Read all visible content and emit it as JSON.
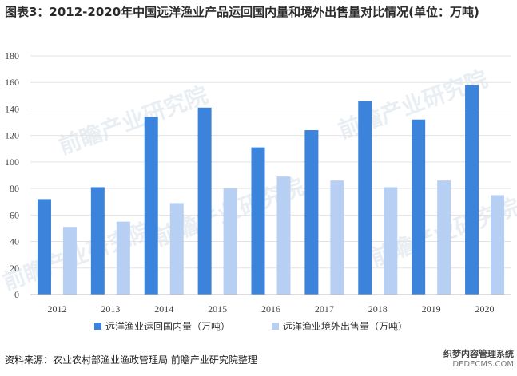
{
  "title": "图表3：2012-2020年中国远洋渔业产品运回国内量和境外出售量对比情况(单位：万吨)",
  "source": "资料来源：农业农村部渔业渔政管理局 前瞻产业研究院整理",
  "watermark": "前瞻产业研究院",
  "corner_watermark": {
    "line1": "织梦内容管理系统",
    "line2": "DEDECMS.COM"
  },
  "colors": {
    "series1": "#3b83db",
    "series2": "#b7cff3",
    "grid": "#e3e3e3",
    "axis": "#bbbbbb"
  },
  "chart_data": {
    "type": "bar",
    "categories": [
      "2012",
      "2013",
      "2014",
      "2015",
      "2016",
      "2017",
      "2018",
      "2019",
      "2020"
    ],
    "series": [
      {
        "name": "远洋渔业运回国内量（万吨）",
        "values": [
          72,
          81,
          134,
          141,
          111,
          124,
          146,
          132,
          158
        ]
      },
      {
        "name": "远洋渔业境外出售量（万吨）",
        "values": [
          51,
          55,
          69,
          80,
          89,
          86,
          81,
          86,
          75
        ]
      }
    ],
    "ylim": [
      0,
      180
    ],
    "yticks": [
      0,
      20,
      40,
      60,
      80,
      100,
      120,
      140,
      160,
      180
    ],
    "grid": true,
    "legend": "bottom"
  }
}
